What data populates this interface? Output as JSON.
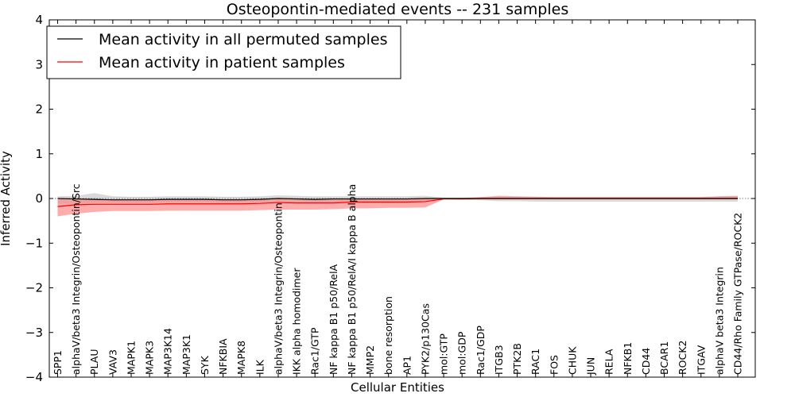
{
  "chart_data": {
    "type": "line",
    "title": "Osteopontin-mediated events -- 231 samples",
    "xlabel": "Cellular Entities",
    "ylabel": "Inferred Activity",
    "ylim": [
      -4,
      4
    ],
    "yticks": [
      4,
      3,
      2,
      1,
      0,
      -1,
      -2,
      -3,
      -4
    ],
    "ytick_labels": [
      "4",
      "3",
      "2",
      "1",
      "0",
      "−1",
      "−2",
      "−3",
      "−4"
    ],
    "grid": false,
    "legend_position": "top-left",
    "categories": [
      "SPP1",
      "alphaV/beta3 Integrin/Osteopontin/Src",
      "PLAU",
      "VAV3",
      "MAPK1",
      "MAPK3",
      "MAP3K14",
      "MAP3K1",
      "SYK",
      "NFKBIA",
      "MAPK8",
      "ILK",
      "alphaV/beta3 Integrin/Osteopontin",
      "IKK alpha homodimer",
      "Rac1/GTP",
      "NF kappa B1 p50/RelA",
      "NF kappa B1 p50/RelA/I kappa B alpha",
      "MMP2",
      "bone resorption",
      "AP1",
      "PYK2/p130Cas",
      "mol:GTP",
      "mol:GDP",
      "Rac1/GDP",
      "ITGB3",
      "PTK2B",
      "RAC1",
      "FOS",
      "CHUK",
      "JUN",
      "RELA",
      "NFKB1",
      "CD44",
      "BCAR1",
      "ROCK2",
      "ITGAV",
      "alphaV beta3 Integrin",
      "CD44/Rho Family GTPase/ROCK2"
    ],
    "series": [
      {
        "name": "Mean activity in all permuted samples",
        "color": "#000000",
        "values": [
          0.0,
          -0.01,
          -0.02,
          -0.03,
          -0.03,
          -0.03,
          -0.02,
          -0.02,
          -0.02,
          -0.03,
          -0.03,
          -0.02,
          0.0,
          -0.01,
          -0.02,
          -0.01,
          -0.01,
          -0.01,
          -0.01,
          -0.01,
          0.0,
          0.0,
          0.0,
          0.0,
          0.0,
          0.0,
          0.0,
          0.0,
          0.0,
          0.0,
          0.0,
          0.0,
          0.0,
          0.0,
          0.0,
          0.0,
          0.0,
          0.0
        ],
        "band_lower": [
          -0.12,
          -0.12,
          -0.1,
          -0.1,
          -0.1,
          -0.1,
          -0.09,
          -0.09,
          -0.09,
          -0.1,
          -0.1,
          -0.09,
          -0.08,
          -0.08,
          -0.09,
          -0.09,
          -0.08,
          -0.09,
          -0.09,
          -0.08,
          -0.07,
          -0.02,
          -0.03,
          -0.04,
          -0.06,
          -0.06,
          -0.07,
          -0.07,
          -0.07,
          -0.07,
          -0.07,
          -0.07,
          -0.07,
          -0.07,
          -0.07,
          -0.07,
          -0.07,
          -0.07
        ],
        "band_upper": [
          0.05,
          0.06,
          0.12,
          0.05,
          0.04,
          0.04,
          0.05,
          0.05,
          0.05,
          0.04,
          0.04,
          0.05,
          0.07,
          0.06,
          0.05,
          0.05,
          0.05,
          0.05,
          0.05,
          0.05,
          0.06,
          0.02,
          0.02,
          0.03,
          0.04,
          0.04,
          0.04,
          0.04,
          0.04,
          0.04,
          0.04,
          0.04,
          0.04,
          0.04,
          0.04,
          0.04,
          0.05,
          0.05
        ]
      },
      {
        "name": "Mean activity in patient samples",
        "color": "#ff0000",
        "values": [
          -0.18,
          -0.14,
          -0.13,
          -0.13,
          -0.13,
          -0.13,
          -0.12,
          -0.12,
          -0.12,
          -0.12,
          -0.12,
          -0.11,
          -0.09,
          -0.1,
          -0.1,
          -0.1,
          -0.08,
          -0.08,
          -0.08,
          -0.08,
          -0.07,
          -0.01,
          -0.01,
          0.0,
          0.0,
          0.0,
          0.0,
          0.0,
          0.0,
          0.0,
          0.0,
          0.0,
          0.0,
          0.0,
          0.0,
          0.0,
          0.0,
          0.0
        ],
        "band_lower": [
          -0.4,
          -0.34,
          -0.3,
          -0.28,
          -0.28,
          -0.28,
          -0.27,
          -0.27,
          -0.27,
          -0.27,
          -0.27,
          -0.26,
          -0.25,
          -0.25,
          -0.25,
          -0.24,
          -0.22,
          -0.22,
          -0.21,
          -0.21,
          -0.2,
          -0.02,
          -0.02,
          -0.02,
          -0.02,
          -0.02,
          -0.02,
          -0.02,
          -0.02,
          -0.02,
          -0.02,
          -0.02,
          -0.02,
          -0.02,
          -0.02,
          -0.02,
          -0.02,
          -0.02
        ],
        "band_upper": [
          -0.02,
          -0.01,
          -0.02,
          -0.02,
          -0.02,
          -0.02,
          -0.01,
          -0.01,
          -0.01,
          -0.02,
          -0.02,
          -0.01,
          0.0,
          -0.01,
          -0.01,
          -0.01,
          0.0,
          0.0,
          0.0,
          0.0,
          0.0,
          0.01,
          0.01,
          0.03,
          0.06,
          0.05,
          0.04,
          0.03,
          0.03,
          0.03,
          0.03,
          0.03,
          0.03,
          0.03,
          0.03,
          0.03,
          0.05,
          0.06
        ]
      }
    ]
  },
  "colors": {
    "permuted_band": "#cccccc",
    "patient_band": "#ff8080",
    "zero_line": "#555555"
  }
}
